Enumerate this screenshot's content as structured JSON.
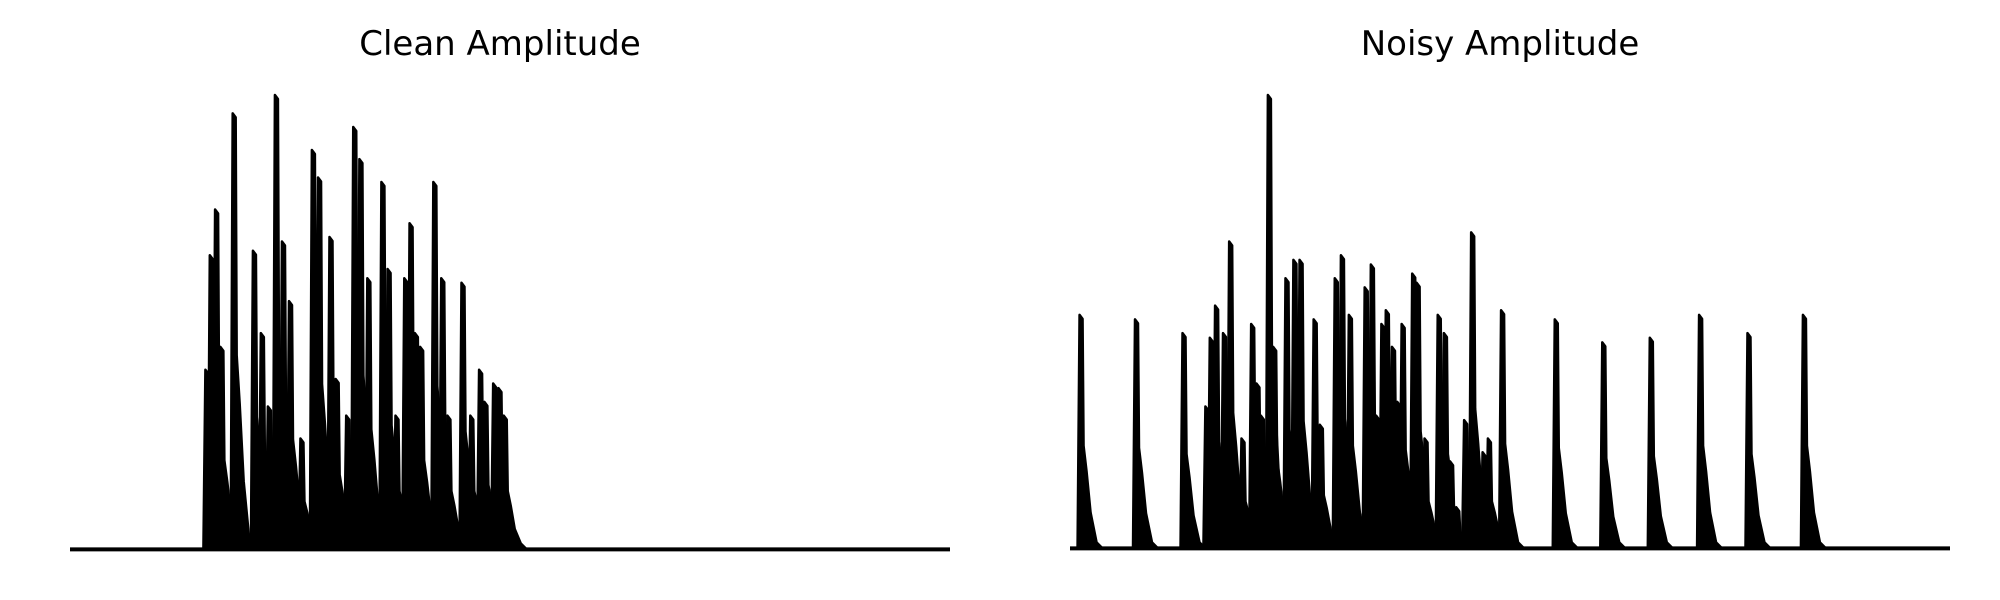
{
  "chart_data": [
    {
      "type": "line",
      "title": "Clean Amplitude",
      "axes_visible": false,
      "grid": false,
      "x_range": [
        0,
        1
      ],
      "ylim": [
        0,
        1
      ],
      "line_color": "#000000",
      "baseline": 0.008,
      "bursts": [
        {
          "x": 0.155,
          "peak": 0.4
        },
        {
          "x": 0.16,
          "peak": 0.65
        },
        {
          "x": 0.166,
          "peak": 0.75
        },
        {
          "x": 0.172,
          "peak": 0.45
        },
        {
          "x": 0.186,
          "peak": 0.96
        },
        {
          "x": 0.209,
          "peak": 0.66
        },
        {
          "x": 0.218,
          "peak": 0.48
        },
        {
          "x": 0.226,
          "peak": 0.32
        },
        {
          "x": 0.234,
          "peak": 1.0
        },
        {
          "x": 0.242,
          "peak": 0.68
        },
        {
          "x": 0.25,
          "peak": 0.55
        },
        {
          "x": 0.263,
          "peak": 0.25
        },
        {
          "x": 0.276,
          "peak": 0.88
        },
        {
          "x": 0.283,
          "peak": 0.82
        },
        {
          "x": 0.296,
          "peak": 0.69
        },
        {
          "x": 0.303,
          "peak": 0.38
        },
        {
          "x": 0.315,
          "peak": 0.3
        },
        {
          "x": 0.323,
          "peak": 0.93
        },
        {
          "x": 0.33,
          "peak": 0.86
        },
        {
          "x": 0.339,
          "peak": 0.6
        },
        {
          "x": 0.355,
          "peak": 0.81
        },
        {
          "x": 0.362,
          "peak": 0.62
        },
        {
          "x": 0.371,
          "peak": 0.3
        },
        {
          "x": 0.381,
          "peak": 0.6
        },
        {
          "x": 0.387,
          "peak": 0.72
        },
        {
          "x": 0.393,
          "peak": 0.48
        },
        {
          "x": 0.399,
          "peak": 0.45
        },
        {
          "x": 0.414,
          "peak": 0.81
        },
        {
          "x": 0.423,
          "peak": 0.6
        },
        {
          "x": 0.43,
          "peak": 0.3
        },
        {
          "x": 0.446,
          "peak": 0.59
        },
        {
          "x": 0.456,
          "peak": 0.3
        },
        {
          "x": 0.466,
          "peak": 0.4
        },
        {
          "x": 0.472,
          "peak": 0.33
        },
        {
          "x": 0.482,
          "peak": 0.37
        },
        {
          "x": 0.488,
          "peak": 0.36
        },
        {
          "x": 0.494,
          "peak": 0.3
        }
      ]
    },
    {
      "type": "line",
      "title": "Noisy Amplitude",
      "axes_visible": false,
      "grid": false,
      "x_range": [
        0,
        1
      ],
      "ylim": [
        0,
        1
      ],
      "line_color": "#000000",
      "baseline": 0.01,
      "bursts": [
        {
          "x": 0.012,
          "peak": 0.52
        },
        {
          "x": 0.075,
          "peak": 0.51
        },
        {
          "x": 0.129,
          "peak": 0.48
        },
        {
          "x": 0.155,
          "peak": 0.32
        },
        {
          "x": 0.16,
          "peak": 0.47
        },
        {
          "x": 0.166,
          "peak": 0.54
        },
        {
          "x": 0.175,
          "peak": 0.48
        },
        {
          "x": 0.182,
          "peak": 0.68
        },
        {
          "x": 0.196,
          "peak": 0.25
        },
        {
          "x": 0.207,
          "peak": 0.5
        },
        {
          "x": 0.213,
          "peak": 0.37
        },
        {
          "x": 0.218,
          "peak": 0.3
        },
        {
          "x": 0.226,
          "peak": 1.0
        },
        {
          "x": 0.232,
          "peak": 0.45
        },
        {
          "x": 0.246,
          "peak": 0.6
        },
        {
          "x": 0.255,
          "peak": 0.64
        },
        {
          "x": 0.262,
          "peak": 0.64
        },
        {
          "x": 0.278,
          "peak": 0.51
        },
        {
          "x": 0.285,
          "peak": 0.28
        },
        {
          "x": 0.302,
          "peak": 0.6
        },
        {
          "x": 0.309,
          "peak": 0.65
        },
        {
          "x": 0.318,
          "peak": 0.52
        },
        {
          "x": 0.336,
          "peak": 0.58
        },
        {
          "x": 0.343,
          "peak": 0.63
        },
        {
          "x": 0.349,
          "peak": 0.3
        },
        {
          "x": 0.355,
          "peak": 0.5
        },
        {
          "x": 0.36,
          "peak": 0.53
        },
        {
          "x": 0.367,
          "peak": 0.45
        },
        {
          "x": 0.373,
          "peak": 0.33
        },
        {
          "x": 0.378,
          "peak": 0.5
        },
        {
          "x": 0.39,
          "peak": 0.61
        },
        {
          "x": 0.395,
          "peak": 0.59
        },
        {
          "x": 0.404,
          "peak": 0.25
        },
        {
          "x": 0.419,
          "peak": 0.52
        },
        {
          "x": 0.426,
          "peak": 0.48
        },
        {
          "x": 0.433,
          "peak": 0.2
        },
        {
          "x": 0.44,
          "peak": 0.1
        },
        {
          "x": 0.449,
          "peak": 0.29
        },
        {
          "x": 0.457,
          "peak": 0.7
        },
        {
          "x": 0.465,
          "peak": 0.19
        },
        {
          "x": 0.47,
          "peak": 0.22
        },
        {
          "x": 0.476,
          "peak": 0.25
        },
        {
          "x": 0.491,
          "peak": 0.53
        },
        {
          "x": 0.552,
          "peak": 0.51
        },
        {
          "x": 0.606,
          "peak": 0.46
        },
        {
          "x": 0.66,
          "peak": 0.47
        },
        {
          "x": 0.716,
          "peak": 0.52
        },
        {
          "x": 0.771,
          "peak": 0.48
        },
        {
          "x": 0.834,
          "peak": 0.52
        }
      ]
    }
  ]
}
